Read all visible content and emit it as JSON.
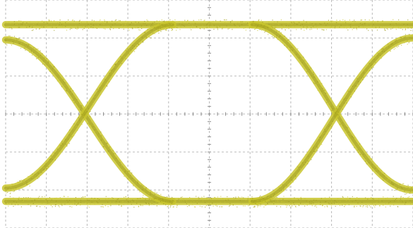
{
  "chart_data": {
    "type": "line",
    "title": "",
    "xlabel": "",
    "ylabel": "",
    "grid": true,
    "grid_divisions": {
      "horizontal": 10,
      "vertical": 6
    },
    "minor_ticks_per_division": 5,
    "xlim": [
      0,
      10
    ],
    "ylim": [
      -3,
      3
    ],
    "levels": {
      "high": 2.35,
      "low": -2.3
    },
    "crossing_points_x": [
      2.05,
      8.1
    ],
    "crossing_level": 0,
    "trace_thickness": 0.12,
    "series": [
      {
        "shape": "high-level-rail",
        "x": [
          0,
          10
        ],
        "y": [
          2.35,
          2.35
        ]
      },
      {
        "shape": "low-level-rail",
        "x": [
          0,
          10
        ],
        "y": [
          -2.3,
          -2.3
        ]
      },
      {
        "shape": "falling-edge",
        "x": [
          0,
          2.05,
          4.1
        ],
        "y": [
          1.95,
          0,
          -2.3
        ]
      },
      {
        "shape": "rising-edge",
        "x": [
          0,
          2.05,
          4.1
        ],
        "y": [
          -1.95,
          0,
          2.35
        ]
      },
      {
        "shape": "falling-edge",
        "x": [
          6.05,
          8.1,
          10
        ],
        "y": [
          2.35,
          0,
          -2.0
        ]
      },
      {
        "shape": "rising-edge",
        "x": [
          6.05,
          8.1,
          10
        ],
        "y": [
          -2.3,
          0,
          2.0
        ]
      }
    ],
    "colors": {
      "trace": "#c9c62e",
      "trace_dark": "#9e9a1e",
      "grid": "#b9b9b9",
      "axis_ticks": "#8a8a8a",
      "background": "#ffffff"
    }
  }
}
